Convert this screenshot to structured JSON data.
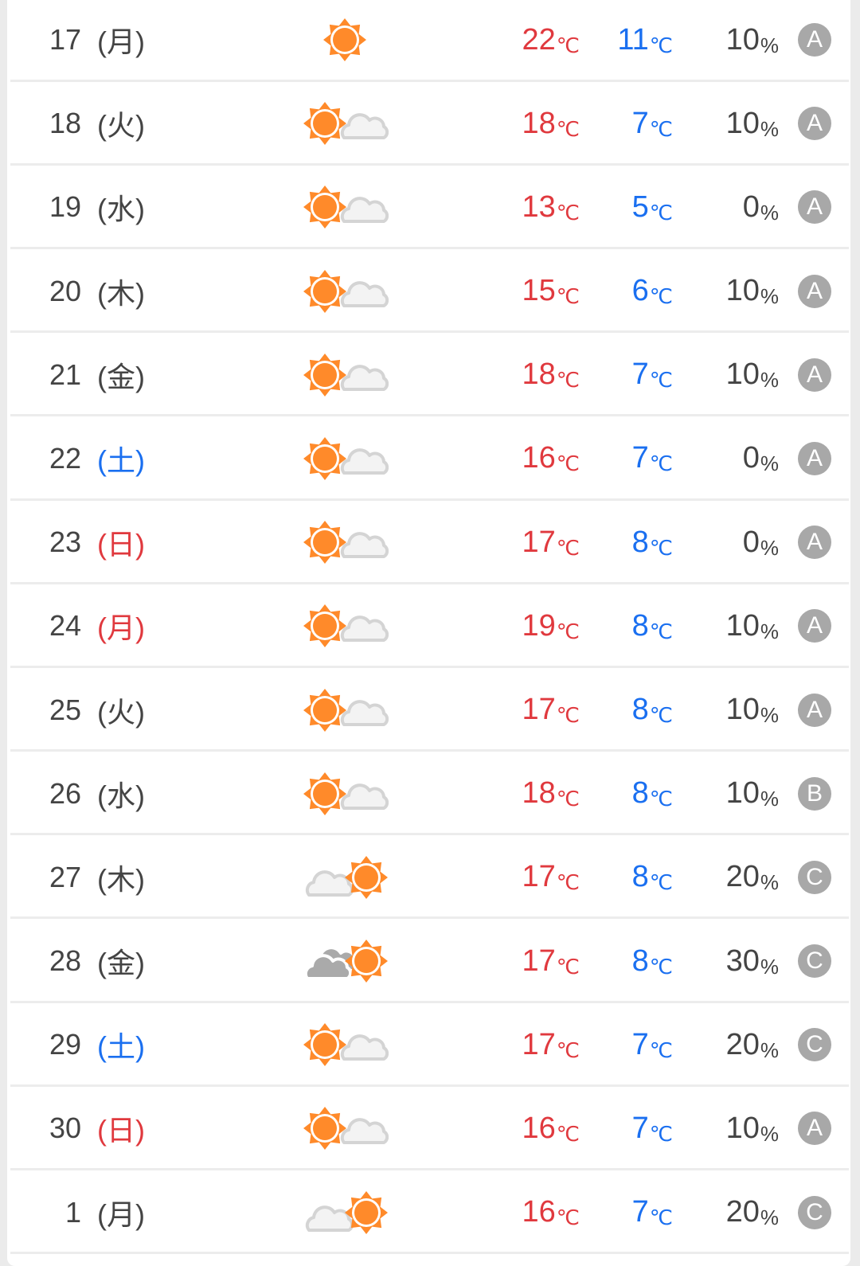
{
  "colors": {
    "high": "#e0393e",
    "low": "#1a6ff0",
    "saturday": "#1a6ff0",
    "holiday": "#e0393e",
    "text": "#444444",
    "sun": "#ff8a2a",
    "badge": "#a8a8a8"
  },
  "units": {
    "temp": "℃",
    "precip": "%"
  },
  "days": [
    {
      "day": "17",
      "weekday": "(月)",
      "weekday_color": "normal",
      "icon": "sun",
      "high": "22",
      "low": "11",
      "precip": "10",
      "reliability": "A"
    },
    {
      "day": "18",
      "weekday": "(火)",
      "weekday_color": "normal",
      "icon": "sun-then-cloud",
      "high": "18",
      "low": "7",
      "precip": "10",
      "reliability": "A"
    },
    {
      "day": "19",
      "weekday": "(水)",
      "weekday_color": "normal",
      "icon": "sun-then-cloud",
      "high": "13",
      "low": "5",
      "precip": "0",
      "reliability": "A"
    },
    {
      "day": "20",
      "weekday": "(木)",
      "weekday_color": "normal",
      "icon": "sun-then-cloud",
      "high": "15",
      "low": "6",
      "precip": "10",
      "reliability": "A"
    },
    {
      "day": "21",
      "weekday": "(金)",
      "weekday_color": "normal",
      "icon": "sun-then-cloud",
      "high": "18",
      "low": "7",
      "precip": "10",
      "reliability": "A"
    },
    {
      "day": "22",
      "weekday": "(土)",
      "weekday_color": "saturday",
      "icon": "sun-then-cloud",
      "high": "16",
      "low": "7",
      "precip": "0",
      "reliability": "A"
    },
    {
      "day": "23",
      "weekday": "(日)",
      "weekday_color": "holiday",
      "icon": "sun-then-cloud",
      "high": "17",
      "low": "8",
      "precip": "0",
      "reliability": "A"
    },
    {
      "day": "24",
      "weekday": "(月)",
      "weekday_color": "holiday",
      "icon": "sun-then-cloud",
      "high": "19",
      "low": "8",
      "precip": "10",
      "reliability": "A"
    },
    {
      "day": "25",
      "weekday": "(火)",
      "weekday_color": "normal",
      "icon": "sun-then-cloud",
      "high": "17",
      "low": "8",
      "precip": "10",
      "reliability": "A"
    },
    {
      "day": "26",
      "weekday": "(水)",
      "weekday_color": "normal",
      "icon": "sun-then-cloud",
      "high": "18",
      "low": "8",
      "precip": "10",
      "reliability": "B"
    },
    {
      "day": "27",
      "weekday": "(木)",
      "weekday_color": "normal",
      "icon": "cloud-then-sun",
      "high": "17",
      "low": "8",
      "precip": "20",
      "reliability": "C"
    },
    {
      "day": "28",
      "weekday": "(金)",
      "weekday_color": "normal",
      "icon": "cloudy-then-sun",
      "high": "17",
      "low": "8",
      "precip": "30",
      "reliability": "C"
    },
    {
      "day": "29",
      "weekday": "(土)",
      "weekday_color": "saturday",
      "icon": "sun-then-cloud",
      "high": "17",
      "low": "7",
      "precip": "20",
      "reliability": "C"
    },
    {
      "day": "30",
      "weekday": "(日)",
      "weekday_color": "holiday",
      "icon": "sun-then-cloud",
      "high": "16",
      "low": "7",
      "precip": "10",
      "reliability": "A"
    },
    {
      "day": "1",
      "weekday": "(月)",
      "weekday_color": "normal",
      "icon": "cloud-then-sun",
      "high": "16",
      "low": "7",
      "precip": "20",
      "reliability": "C"
    }
  ]
}
